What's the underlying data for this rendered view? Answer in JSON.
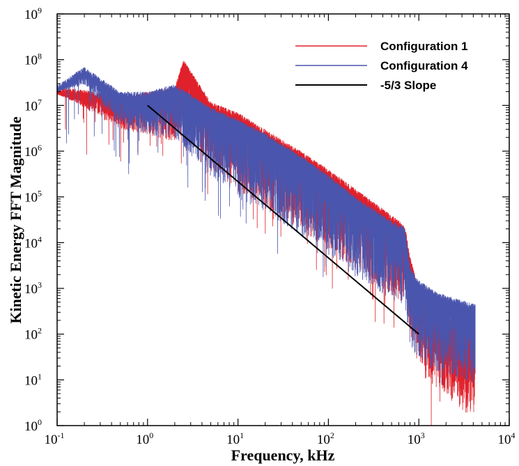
{
  "chart_data": {
    "type": "line",
    "xlabel": "Frequency, kHz",
    "ylabel": "Kinetic Energy FFT Magnitude",
    "xscale": "log",
    "yscale": "log",
    "xlim": [
      0.1,
      10000
    ],
    "ylim": [
      1,
      1000000000
    ],
    "grid": false,
    "legend_position": "top-right",
    "x_ticks": [
      {
        "base": "10",
        "exp": "-1"
      },
      {
        "base": "10",
        "exp": "0"
      },
      {
        "base": "10",
        "exp": "1"
      },
      {
        "base": "10",
        "exp": "2"
      },
      {
        "base": "10",
        "exp": "3"
      },
      {
        "base": "10",
        "exp": "4"
      }
    ],
    "y_ticks": [
      {
        "base": "10",
        "exp": "0"
      },
      {
        "base": "10",
        "exp": "1"
      },
      {
        "base": "10",
        "exp": "2"
      },
      {
        "base": "10",
        "exp": "3"
      },
      {
        "base": "10",
        "exp": "4"
      },
      {
        "base": "10",
        "exp": "5"
      },
      {
        "base": "10",
        "exp": "6"
      },
      {
        "base": "10",
        "exp": "7"
      },
      {
        "base": "10",
        "exp": "8"
      },
      {
        "base": "10",
        "exp": "9"
      }
    ],
    "series": [
      {
        "name": "Configuration 1",
        "color": "#e0202a",
        "description": "noisy spectrum, upper envelope",
        "x": [
          0.1,
          0.2,
          0.5,
          1,
          2,
          2.5,
          5,
          10,
          20,
          50,
          100,
          200,
          500,
          700,
          800,
          1000,
          1200,
          1500,
          2000,
          3000,
          4200
        ],
        "y": [
          25000000,
          22000000,
          15000000,
          20000000,
          25000000,
          100000000,
          12000000,
          7000000,
          3000000,
          1000000,
          400000,
          150000,
          40000,
          25000,
          5000,
          1000,
          500,
          400,
          250,
          120,
          80
        ]
      },
      {
        "name": "Configuration 4",
        "color": "#4a55ad",
        "description": "noisy spectrum, upper envelope",
        "x": [
          0.1,
          0.2,
          0.5,
          1,
          2,
          5,
          10,
          20,
          50,
          100,
          200,
          500,
          700,
          800,
          1000,
          1500,
          2000,
          3000,
          4200
        ],
        "y": [
          28000000,
          70000000,
          20000000,
          20000000,
          30000000,
          9000000,
          5000000,
          2500000,
          800000,
          300000,
          100000,
          30000,
          22000,
          3000,
          1500,
          900,
          700,
          550,
          450
        ]
      },
      {
        "name": "-5/3 Slope",
        "color": "#000000",
        "x": [
          1,
          1000
        ],
        "y": [
          10000000,
          100
        ]
      }
    ]
  }
}
